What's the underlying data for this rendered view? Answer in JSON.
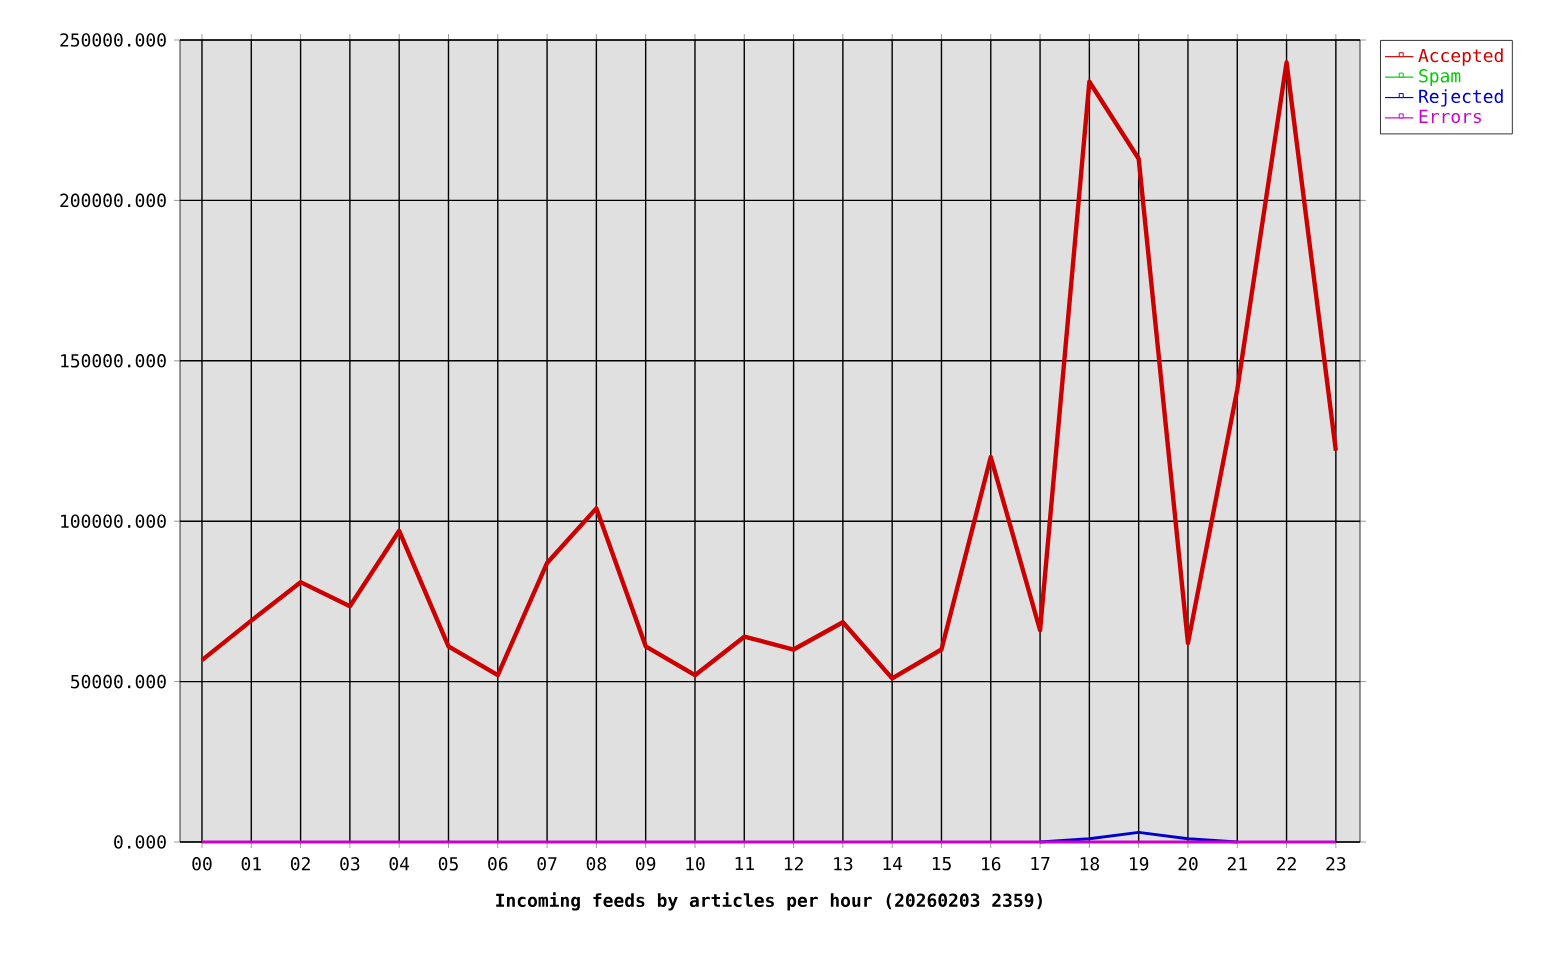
{
  "chart_data": {
    "type": "line",
    "xlabel": "Incoming feeds by articles per hour (20260203 2359)",
    "categories": [
      "00",
      "01",
      "02",
      "03",
      "04",
      "05",
      "06",
      "07",
      "08",
      "09",
      "10",
      "11",
      "12",
      "13",
      "14",
      "15",
      "16",
      "17",
      "18",
      "19",
      "20",
      "21",
      "22",
      "23"
    ],
    "series": [
      {
        "name": "Accepted",
        "color": "#cc0000",
        "values": [
          56700,
          69000,
          81000,
          73500,
          97000,
          61000,
          52000,
          87000,
          104000,
          61000,
          52000,
          64000,
          60000,
          68500,
          51000,
          60000,
          120000,
          66000,
          237000,
          213000,
          62000,
          141000,
          243000,
          122000
        ]
      },
      {
        "name": "Spam",
        "color": "#00cc00",
        "values": [
          null,
          null,
          null,
          null,
          null,
          null,
          null,
          null,
          null,
          null,
          null,
          null,
          null,
          null,
          null,
          null,
          null,
          null,
          null,
          null,
          null,
          null,
          null,
          null
        ]
      },
      {
        "name": "Rejected",
        "color": "#0000cc",
        "values": [
          null,
          null,
          null,
          null,
          null,
          null,
          null,
          null,
          null,
          null,
          null,
          null,
          null,
          null,
          null,
          null,
          null,
          0,
          1000,
          3000,
          1000,
          0,
          null,
          null
        ]
      },
      {
        "name": "Errors",
        "color": "#cc00cc",
        "values": [
          0,
          0,
          0,
          0,
          0,
          0,
          0,
          0,
          0,
          0,
          0,
          0,
          0,
          0,
          0,
          0,
          0,
          0,
          0,
          0,
          0,
          0,
          0,
          0
        ]
      }
    ],
    "ylim": [
      0,
      250000
    ],
    "yticks": [
      {
        "value": 0,
        "label": "0.000"
      },
      {
        "value": 50000,
        "label": "50000.000"
      },
      {
        "value": 100000,
        "label": "100000.000"
      },
      {
        "value": 150000,
        "label": "150000.000"
      },
      {
        "value": 200000,
        "label": "200000.000"
      },
      {
        "value": 250000,
        "label": "250000.000"
      }
    ],
    "grid": true,
    "legend": "top right"
  }
}
